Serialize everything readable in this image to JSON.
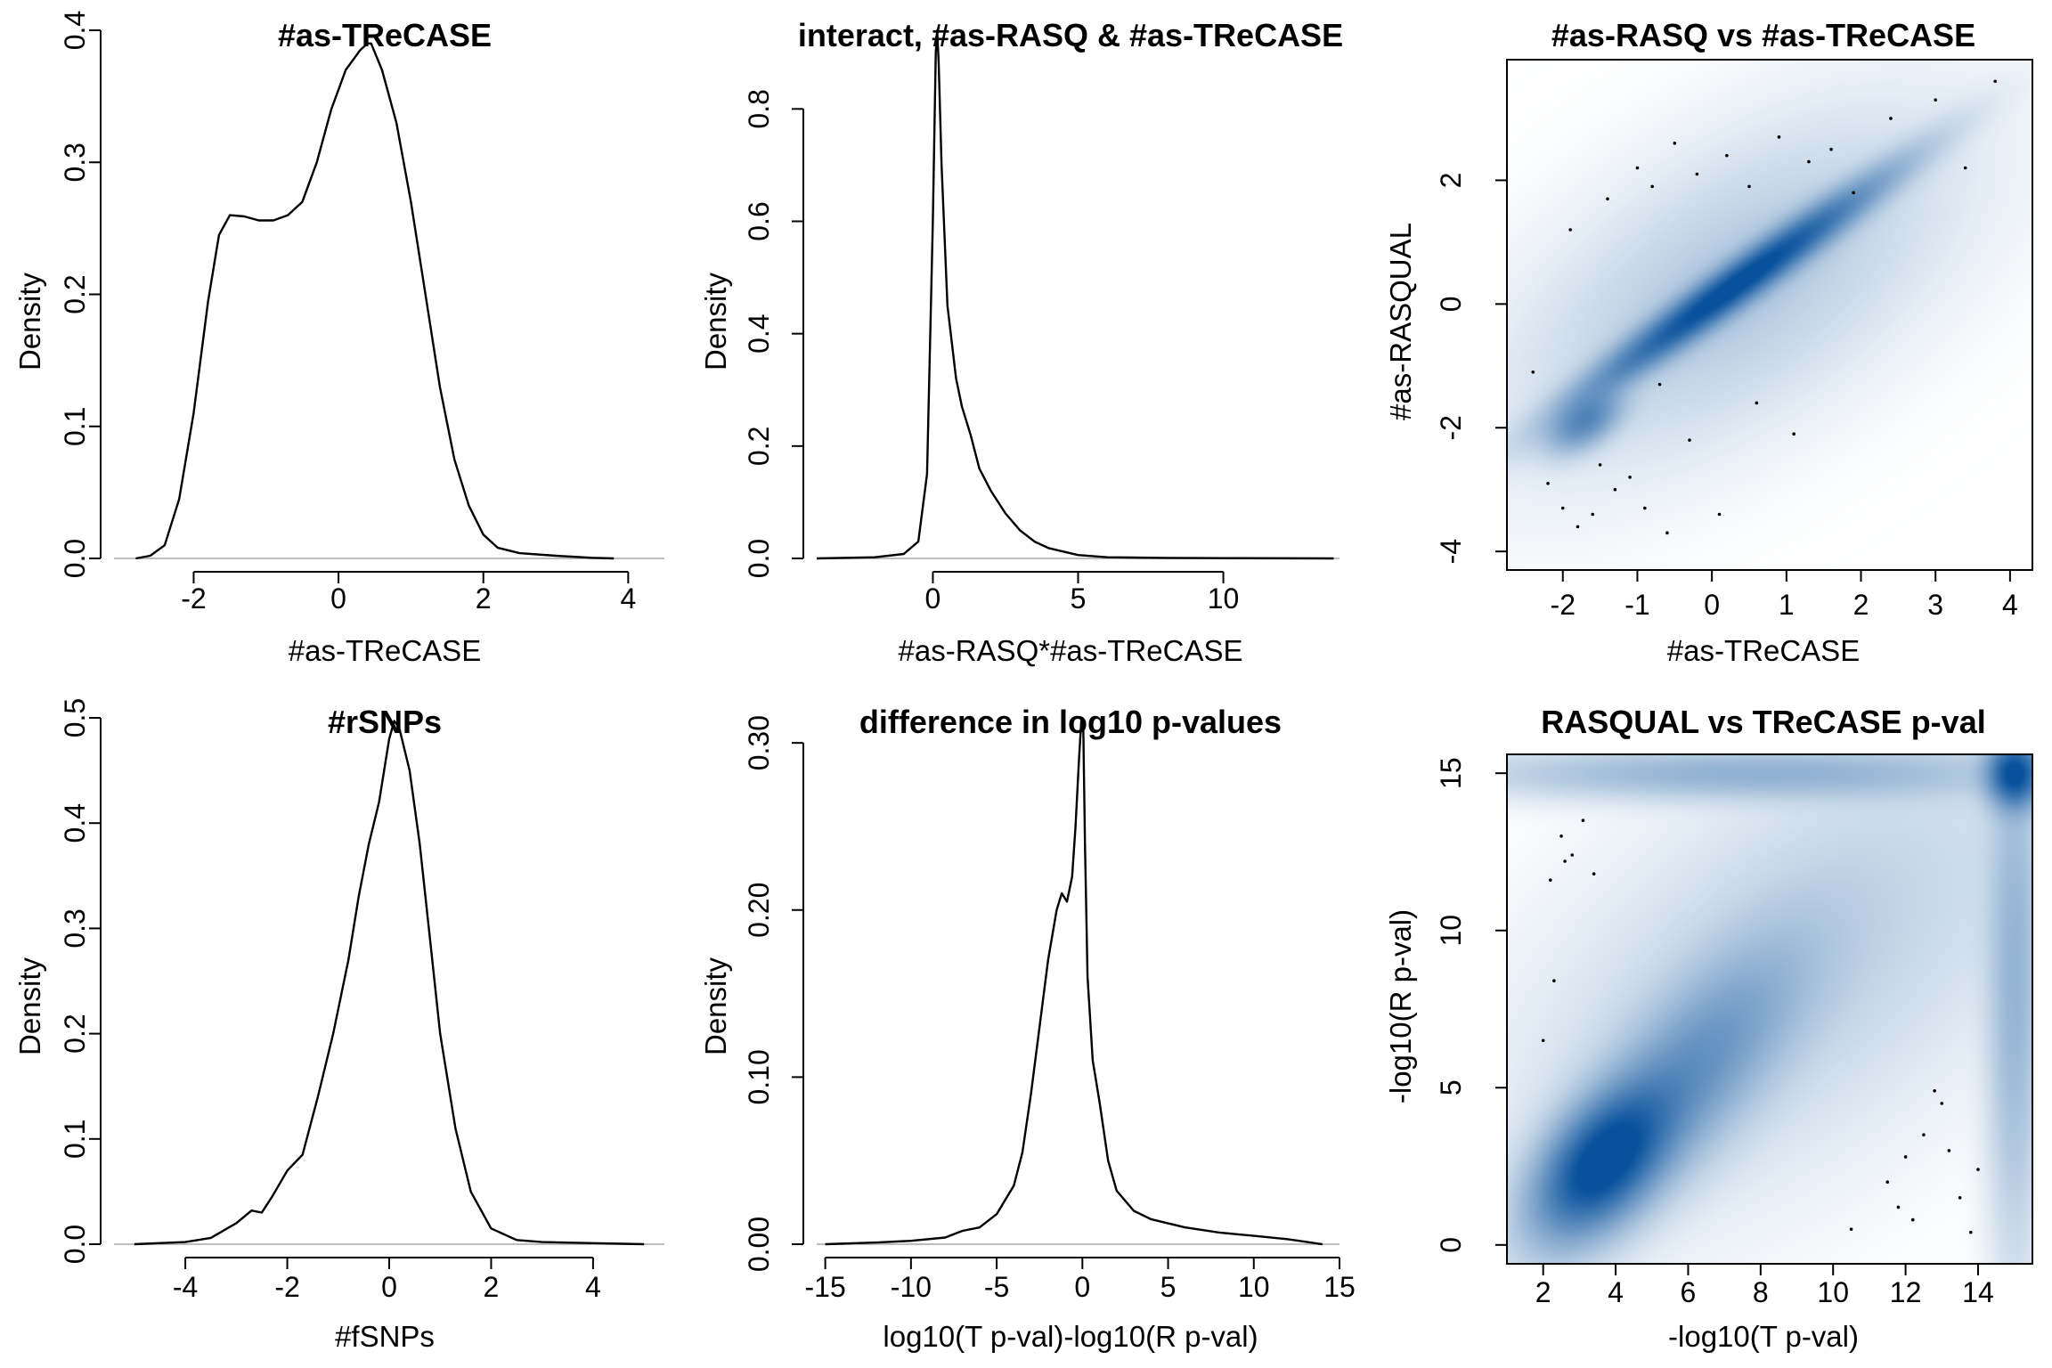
{
  "figure": {
    "background": "#ffffff"
  },
  "chart_data": [
    {
      "type": "line",
      "title": "#as-TReCASE",
      "xlabel": "#as-TReCASE",
      "ylabel": "Density",
      "xlim": [
        -3.1,
        4.5
      ],
      "ylim": [
        0,
        0.4
      ],
      "xticks": [
        -2,
        0,
        2,
        4
      ],
      "xtick_labels": [
        "-2",
        "0",
        "2",
        "4"
      ],
      "yticks": [
        0,
        0.1,
        0.2,
        0.3,
        0.4
      ],
      "ytick_labels": [
        "0.0",
        "0.1",
        "0.2",
        "0.3",
        "0.4"
      ],
      "series": [
        {
          "x": [
            -2.8,
            -2.6,
            -2.4,
            -2.2,
            -2.0,
            -1.8,
            -1.65,
            -1.5,
            -1.3,
            -1.1,
            -0.9,
            -0.7,
            -0.5,
            -0.3,
            -0.1,
            0.1,
            0.3,
            0.4,
            0.45,
            0.6,
            0.8,
            1.0,
            1.2,
            1.4,
            1.6,
            1.8,
            2.0,
            2.2,
            2.5,
            3.0,
            3.5,
            3.8
          ],
          "y": [
            0.0,
            0.002,
            0.01,
            0.045,
            0.11,
            0.195,
            0.245,
            0.26,
            0.259,
            0.256,
            0.256,
            0.26,
            0.27,
            0.3,
            0.34,
            0.37,
            0.385,
            0.39,
            0.39,
            0.37,
            0.33,
            0.27,
            0.2,
            0.13,
            0.075,
            0.04,
            0.018,
            0.008,
            0.004,
            0.002,
            0.0005,
            0.0
          ]
        }
      ]
    },
    {
      "type": "line",
      "title": "interact, #as-RASQ & #as-TReCASE",
      "xlabel": "#as-RASQ*#as-TReCASE",
      "ylabel": "Density",
      "xlim": [
        -4,
        14
      ],
      "ylim": [
        0,
        0.94
      ],
      "xticks": [
        0,
        5,
        10
      ],
      "xtick_labels": [
        "0",
        "5",
        "10"
      ],
      "yticks": [
        0,
        0.2,
        0.4,
        0.6,
        0.8
      ],
      "ytick_labels": [
        "0.0",
        "0.2",
        "0.4",
        "0.6",
        "0.8"
      ],
      "series": [
        {
          "x": [
            -4.0,
            -2.0,
            -1.0,
            -0.5,
            -0.2,
            0.0,
            0.1,
            0.15,
            0.2,
            0.3,
            0.5,
            0.8,
            1.0,
            1.3,
            1.6,
            2.0,
            2.5,
            3.0,
            3.5,
            4.0,
            5.0,
            6.0,
            8.0,
            10.0,
            13.8
          ],
          "y": [
            0.0,
            0.002,
            0.008,
            0.03,
            0.15,
            0.6,
            0.9,
            0.94,
            0.88,
            0.7,
            0.45,
            0.32,
            0.27,
            0.22,
            0.16,
            0.12,
            0.08,
            0.05,
            0.03,
            0.018,
            0.006,
            0.002,
            0.001,
            0.0005,
            0.0
          ]
        }
      ]
    },
    {
      "type": "heatmap",
      "title": "#as-RASQ vs #as-TReCASE",
      "xlabel": "#as-TReCASE",
      "ylabel": "#as-RASQUAL",
      "xlim": [
        -2.75,
        4.3
      ],
      "ylim": [
        -4.3,
        3.95
      ],
      "xticks": [
        -2,
        -1,
        0,
        1,
        2,
        3,
        4
      ],
      "xtick_labels": [
        "-2",
        "-1",
        "0",
        "1",
        "2",
        "3",
        "4"
      ],
      "yticks": [
        -4,
        -2,
        0,
        2
      ],
      "ytick_labels": [
        "-4",
        "-2",
        "0",
        "2"
      ],
      "colors": {
        "high": "#08519c",
        "low": "#ffffff"
      },
      "density_components": [
        {
          "mx": 0.3,
          "my": 0.3,
          "sx": 1.2,
          "sy": 1.05,
          "rho": 0.97,
          "w": 1.0
        },
        {
          "mx": -1.7,
          "my": -1.9,
          "sx": 0.3,
          "sy": 0.3,
          "rho": 0.5,
          "w": 0.45
        },
        {
          "mx": 0.3,
          "my": 0.3,
          "sx": 1.7,
          "sy": 1.6,
          "rho": 0.6,
          "w": 0.12
        }
      ],
      "outlier_points": {
        "x": [
          -2.2,
          -2.0,
          -1.8,
          -1.6,
          -1.3,
          -1.1,
          -0.9,
          -0.6,
          -1.9,
          -1.4,
          -1.0,
          -0.8,
          -0.5,
          -0.2,
          0.2,
          0.5,
          0.9,
          1.3,
          1.6,
          1.9,
          2.4,
          3.0,
          3.4,
          3.8,
          -2.4,
          -1.5,
          -0.3,
          0.6,
          1.1,
          -0.7,
          0.1
        ],
        "y": [
          -2.9,
          -3.3,
          -3.6,
          -3.4,
          -3.0,
          -2.8,
          -3.3,
          -3.7,
          1.2,
          1.7,
          2.2,
          1.9,
          2.6,
          2.1,
          2.4,
          1.9,
          2.7,
          2.3,
          2.5,
          1.8,
          3.0,
          3.3,
          2.2,
          3.6,
          -1.1,
          -2.6,
          -2.2,
          -1.6,
          -2.1,
          -1.3,
          -3.4
        ]
      }
    },
    {
      "type": "line",
      "title": "#rSNPs",
      "xlabel": "#fSNPs",
      "ylabel": "Density",
      "xlim": [
        -5.4,
        5.4
      ],
      "ylim": [
        0,
        0.5
      ],
      "xticks": [
        -4,
        -2,
        0,
        2,
        4
      ],
      "xtick_labels": [
        "-4",
        "-2",
        "0",
        "2",
        "4"
      ],
      "yticks": [
        0,
        0.1,
        0.2,
        0.3,
        0.4,
        0.5
      ],
      "ytick_labels": [
        "0.0",
        "0.1",
        "0.2",
        "0.3",
        "0.4",
        "0.5"
      ],
      "series": [
        {
          "x": [
            -5.0,
            -4.0,
            -3.5,
            -3.0,
            -2.7,
            -2.5,
            -2.3,
            -2.0,
            -1.7,
            -1.4,
            -1.1,
            -0.8,
            -0.6,
            -0.4,
            -0.2,
            0.0,
            0.1,
            0.2,
            0.4,
            0.6,
            0.8,
            1.0,
            1.3,
            1.6,
            2.0,
            2.5,
            3.0,
            4.0,
            5.0
          ],
          "y": [
            0.0,
            0.002,
            0.006,
            0.02,
            0.032,
            0.03,
            0.045,
            0.07,
            0.085,
            0.14,
            0.2,
            0.27,
            0.33,
            0.38,
            0.42,
            0.48,
            0.497,
            0.49,
            0.45,
            0.38,
            0.29,
            0.2,
            0.11,
            0.05,
            0.015,
            0.004,
            0.002,
            0.001,
            0.0
          ]
        }
      ]
    },
    {
      "type": "line",
      "title": "difference in log10 p-values",
      "xlabel": "log10(T p-val)-log10(R p-val)",
      "ylabel": "Density",
      "xlim": [
        -15.5,
        15
      ],
      "ylim": [
        0,
        0.315
      ],
      "xticks": [
        -15,
        -10,
        -5,
        0,
        5,
        10,
        15
      ],
      "xtick_labels": [
        "-15",
        "-10",
        "-5",
        "0",
        "5",
        "10",
        "15"
      ],
      "yticks": [
        0,
        0.1,
        0.2,
        0.3
      ],
      "ytick_labels": [
        "0.00",
        "0.10",
        "0.20",
        "0.30"
      ],
      "series": [
        {
          "x": [
            -15.0,
            -12.0,
            -10.0,
            -8.0,
            -7.0,
            -6.0,
            -5.0,
            -4.0,
            -3.5,
            -3.0,
            -2.5,
            -2.0,
            -1.5,
            -1.2,
            -0.9,
            -0.6,
            -0.4,
            -0.2,
            -0.05,
            0.05,
            0.15,
            0.3,
            0.6,
            1.0,
            1.5,
            2.0,
            3.0,
            4.0,
            6.0,
            8.0,
            10.0,
            12.0,
            14.0
          ],
          "y": [
            0.0,
            0.001,
            0.002,
            0.004,
            0.008,
            0.01,
            0.018,
            0.035,
            0.055,
            0.09,
            0.13,
            0.17,
            0.2,
            0.21,
            0.205,
            0.22,
            0.25,
            0.29,
            0.315,
            0.31,
            0.24,
            0.16,
            0.11,
            0.085,
            0.05,
            0.032,
            0.02,
            0.015,
            0.01,
            0.007,
            0.005,
            0.003,
            0.0
          ]
        }
      ]
    },
    {
      "type": "heatmap",
      "title": "RASQUAL vs TReCASE p-val",
      "xlabel": "-log10(T p-val)",
      "ylabel": "-log10(R p-val)",
      "xlim": [
        1.0,
        15.5
      ],
      "ylim": [
        -0.6,
        15.6
      ],
      "xticks": [
        2,
        4,
        6,
        8,
        10,
        12,
        14
      ],
      "xtick_labels": [
        "2",
        "4",
        "6",
        "8",
        "10",
        "12",
        "14"
      ],
      "yticks": [
        0,
        5,
        10,
        15
      ],
      "ytick_labels": [
        "0",
        "5",
        "10",
        "15"
      ],
      "colors": {
        "high": "#08519c",
        "low": "#ffffff"
      },
      "density_components": [
        {
          "mx": 3.6,
          "my": 2.6,
          "sx": 1.1,
          "sy": 1.4,
          "rho": 0.5,
          "w": 1.0
        },
        {
          "mx": 5.8,
          "my": 5.2,
          "sx": 2.0,
          "sy": 2.6,
          "rho": 0.75,
          "w": 0.38
        },
        {
          "mx": 15.0,
          "my": 15.0,
          "sx": 0.45,
          "sy": 0.65,
          "rho": 0.0,
          "w": 0.95
        },
        {
          "mx": 15.0,
          "my": 8.0,
          "sx": 0.45,
          "sy": 5.0,
          "rho": 0.0,
          "w": 0.2
        },
        {
          "mx": 7.5,
          "my": 15.0,
          "sx": 4.5,
          "sy": 0.5,
          "rho": 0.0,
          "w": 0.22
        },
        {
          "mx": 9.0,
          "my": 9.0,
          "sx": 4.5,
          "sy": 4.5,
          "rho": 0.6,
          "w": 0.09
        }
      ],
      "outlier_points": {
        "x": [
          2.5,
          2.8,
          3.1,
          2.2,
          2.6,
          3.4,
          2.3,
          2.0,
          11.5,
          12.0,
          12.5,
          13.0,
          13.5,
          12.2,
          13.2,
          11.8,
          10.5,
          12.8,
          13.8,
          14.0
        ],
        "y": [
          13.0,
          12.4,
          13.5,
          11.6,
          12.2,
          11.8,
          8.4,
          6.5,
          2.0,
          2.8,
          3.5,
          4.5,
          1.5,
          0.8,
          3.0,
          1.2,
          0.5,
          4.9,
          0.4,
          2.4
        ]
      }
    }
  ]
}
